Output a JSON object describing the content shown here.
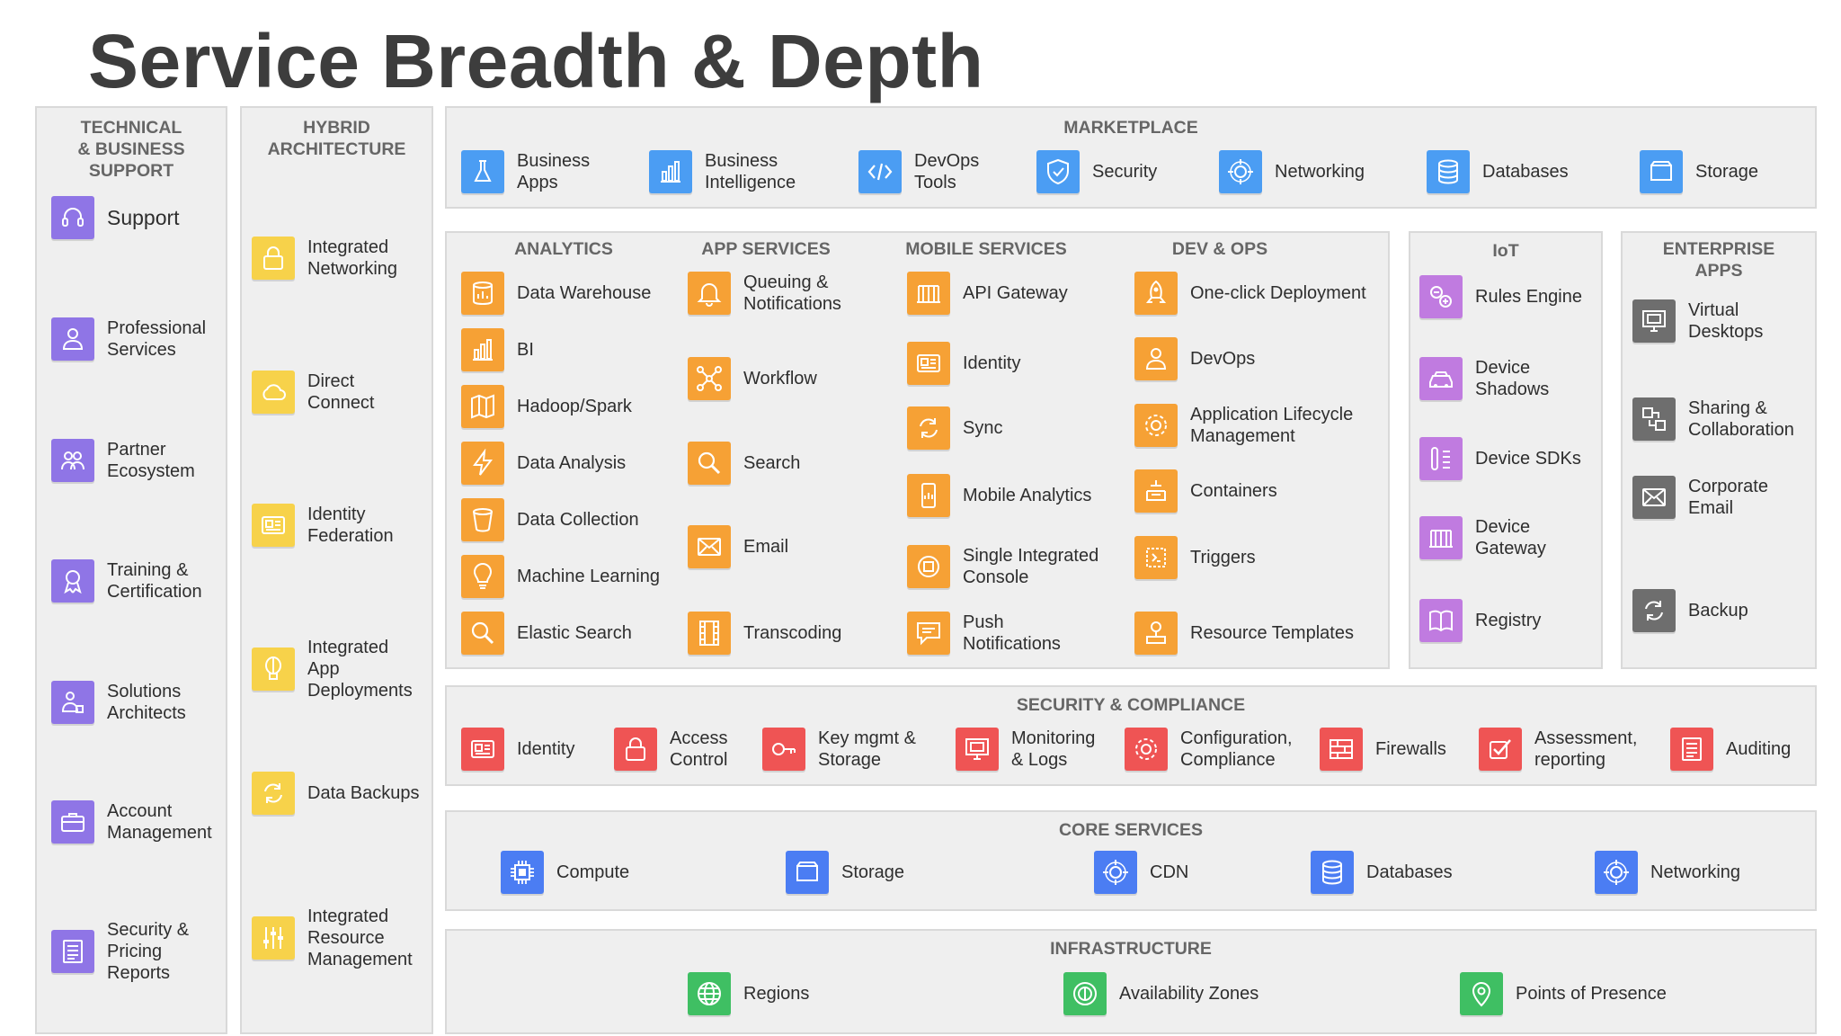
{
  "title": "Service Breadth & Depth",
  "technical": {
    "heading": "TECHNICAL\n& BUSINESS\nSUPPORT",
    "items": [
      {
        "label": "Support",
        "icon": "headset-icon"
      },
      {
        "label": "Professional\nServices",
        "icon": "person-icon"
      },
      {
        "label": "Partner\nEcosystem",
        "icon": "group-icon"
      },
      {
        "label": "Training &\nCertification",
        "icon": "certificate-icon"
      },
      {
        "label": "Solutions\nArchitects",
        "icon": "architect-icon"
      },
      {
        "label": "Account\nManagement",
        "icon": "briefcase-icon"
      },
      {
        "label": "Security &\nPricing\nReports",
        "icon": "report-icon"
      }
    ]
  },
  "hybrid": {
    "heading": "HYBRID\nARCHITECTURE",
    "items": [
      {
        "label": "Integrated\nNetworking",
        "icon": "lock-icon"
      },
      {
        "label": "Direct\nConnect",
        "icon": "cloud-icon"
      },
      {
        "label": "Identity\nFederation",
        "icon": "id-card-icon"
      },
      {
        "label": "Integrated\nApp\nDeployments",
        "icon": "balloon-icon"
      },
      {
        "label": "Data Backups",
        "icon": "sync-icon"
      },
      {
        "label": "Integrated\nResource\nManagement",
        "icon": "sliders-icon"
      }
    ]
  },
  "marketplace": {
    "heading": "MARKETPLACE",
    "items": [
      {
        "label": "Business\nApps",
        "icon": "flask-icon"
      },
      {
        "label": "Business\nIntelligence",
        "icon": "bar-chart-icon"
      },
      {
        "label": "DevOps\nTools",
        "icon": "code-icon"
      },
      {
        "label": "Security",
        "icon": "shield-icon"
      },
      {
        "label": "Networking",
        "icon": "network-icon"
      },
      {
        "label": "Databases",
        "icon": "database-icon"
      },
      {
        "label": "Storage",
        "icon": "storage-icon"
      }
    ]
  },
  "analytics": {
    "heading": "ANALYTICS",
    "items": [
      {
        "label": "Data Warehouse",
        "icon": "warehouse-icon"
      },
      {
        "label": "BI",
        "icon": "bar-chart-icon"
      },
      {
        "label": "Hadoop/Spark",
        "icon": "map-icon"
      },
      {
        "label": "Data Analysis",
        "icon": "lightning-icon"
      },
      {
        "label": "Data Collection",
        "icon": "bucket-icon"
      },
      {
        "label": "Machine Learning",
        "icon": "bulb-icon"
      },
      {
        "label": "Elastic Search",
        "icon": "search-icon"
      }
    ]
  },
  "app_services": {
    "heading": "APP SERVICES",
    "items": [
      {
        "label": "Queuing &\nNotifications",
        "icon": "bell-icon"
      },
      {
        "label": "Workflow",
        "icon": "workflow-icon"
      },
      {
        "label": "Search",
        "icon": "search-icon"
      },
      {
        "label": "Email",
        "icon": "email-icon"
      },
      {
        "label": "Transcoding",
        "icon": "film-icon"
      }
    ]
  },
  "mobile_services": {
    "heading": "MOBILE SERVICES",
    "items": [
      {
        "label": "API Gateway",
        "icon": "gateway-icon"
      },
      {
        "label": "Identity",
        "icon": "id-card-icon"
      },
      {
        "label": "Sync",
        "icon": "sync-icon"
      },
      {
        "label": "Mobile Analytics",
        "icon": "mobile-icon"
      },
      {
        "label": "Single Integrated\nConsole",
        "icon": "console-icon"
      },
      {
        "label": "Push\nNotifications",
        "icon": "message-icon"
      }
    ]
  },
  "dev_ops": {
    "heading": "DEV & OPS",
    "items": [
      {
        "label": "One-click Deployment",
        "icon": "rocket-icon"
      },
      {
        "label": "DevOps",
        "icon": "person-icon"
      },
      {
        "label": "Application Lifecycle\nManagement",
        "icon": "gear-icon"
      },
      {
        "label": "Containers",
        "icon": "containers-icon"
      },
      {
        "label": "Triggers",
        "icon": "trigger-icon"
      },
      {
        "label": "Resource Templates",
        "icon": "template-icon"
      }
    ]
  },
  "iot": {
    "heading": "IoT",
    "items": [
      {
        "label": "Rules Engine",
        "icon": "rules-icon"
      },
      {
        "label": "Device\nShadows",
        "icon": "car-icon"
      },
      {
        "label": "Device SDKs",
        "icon": "sdk-icon"
      },
      {
        "label": "Device\nGateway",
        "icon": "gateway-icon"
      },
      {
        "label": "Registry",
        "icon": "book-icon"
      }
    ]
  },
  "enterprise": {
    "heading": "ENTERPRISE\nAPPS",
    "items": [
      {
        "label": "Virtual\nDesktops",
        "icon": "monitor-icon"
      },
      {
        "label": "Sharing &\nCollaboration",
        "icon": "share-icon"
      },
      {
        "label": "Corporate\nEmail",
        "icon": "email-icon"
      },
      {
        "label": "Backup",
        "icon": "sync-icon"
      }
    ]
  },
  "security": {
    "heading": "SECURITY & COMPLIANCE",
    "items": [
      {
        "label": "Identity",
        "icon": "id-card-icon"
      },
      {
        "label": "Access\nControl",
        "icon": "lock-icon"
      },
      {
        "label": "Key mgmt &\nStorage",
        "icon": "key-icon"
      },
      {
        "label": "Monitoring\n& Logs",
        "icon": "monitor-icon"
      },
      {
        "label": "Configuration,\nCompliance",
        "icon": "gear-icon"
      },
      {
        "label": "Firewalls",
        "icon": "firewall-icon"
      },
      {
        "label": "Assessment,\nreporting",
        "icon": "check-icon"
      },
      {
        "label": "Auditing",
        "icon": "report-icon"
      }
    ]
  },
  "core": {
    "heading": "CORE SERVICES",
    "items": [
      {
        "label": "Compute",
        "icon": "chip-icon"
      },
      {
        "label": "Storage",
        "icon": "storage-icon"
      },
      {
        "label": "CDN",
        "icon": "network-icon"
      },
      {
        "label": "Databases",
        "icon": "database-icon"
      },
      {
        "label": "Networking",
        "icon": "network-icon"
      }
    ]
  },
  "infrastructure": {
    "heading": "INFRASTRUCTURE",
    "items": [
      {
        "label": "Regions",
        "icon": "globe-icon"
      },
      {
        "label": "Availability Zones",
        "icon": "zone-icon"
      },
      {
        "label": "Points of Presence",
        "icon": "pin-icon"
      }
    ]
  },
  "colors": {
    "support": "#8f75e6",
    "hybrid": "#f7d24a",
    "marketplace": "#4b9df3",
    "platform": "#f6a135",
    "iot": "#c07be0",
    "enterprise": "#6e6e6e",
    "security": "#ef5454",
    "core": "#4b7df3",
    "infrastructure": "#3fbf63",
    "panel_bg": "#efefef",
    "heading_text": "#666666"
  }
}
